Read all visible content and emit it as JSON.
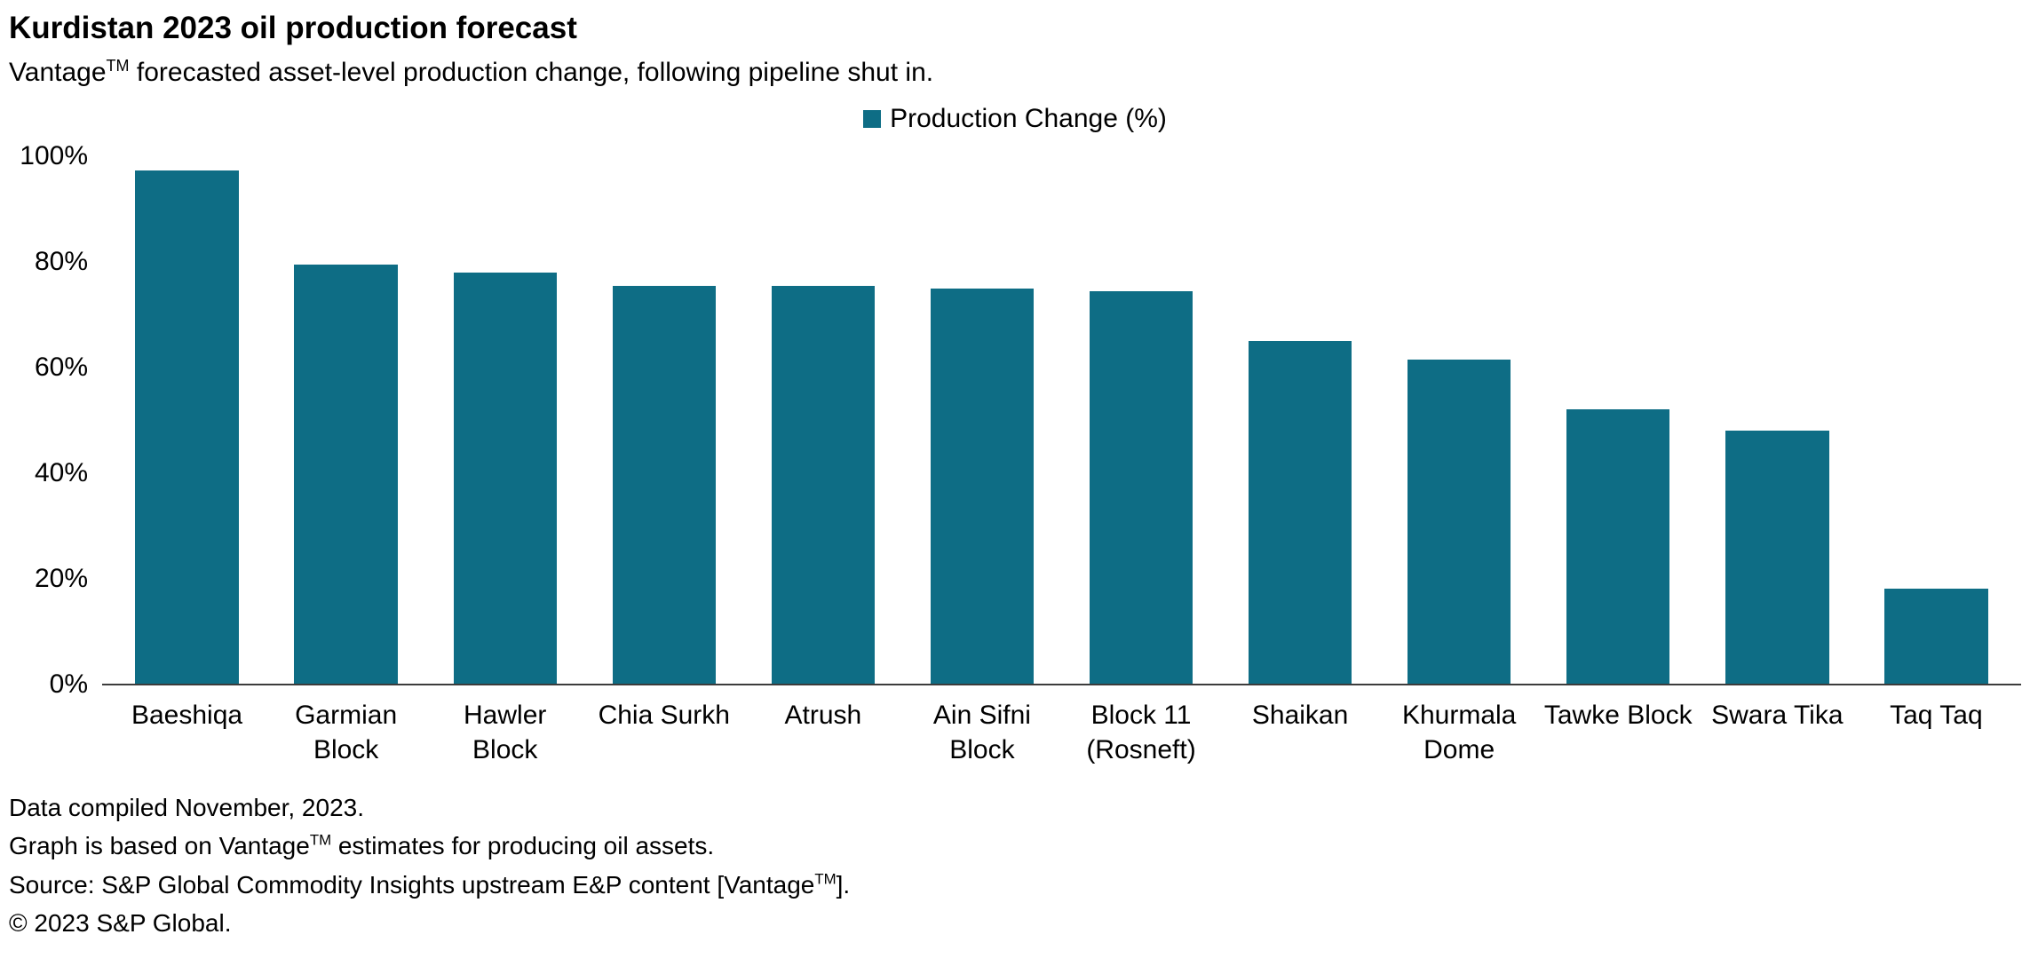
{
  "page": {
    "title": "Kurdistan 2023 oil production forecast",
    "subtitle": {
      "pre": "Vantage",
      "sup": "TM",
      "post": " forecasted asset-level production change, following pipeline shut in."
    }
  },
  "legend": {
    "label": "Production Change (%)"
  },
  "colors": {
    "bar": "#0e6d85",
    "axis": "#3c3c3c",
    "text": "#000000"
  },
  "chart_data": {
    "type": "bar",
    "title": "Kurdistan 2023 oil production forecast",
    "subtitle": "Vantage(TM) forecasted asset-level production change, following pipeline shut in.",
    "legend": [
      "Production Change (%)"
    ],
    "legend_position": "top",
    "grid": false,
    "xlabel": "",
    "ylabel": "",
    "ylim": [
      0,
      100
    ],
    "yticks": [
      "0%",
      "20%",
      "40%",
      "60%",
      "80%",
      "100%"
    ],
    "categories": [
      "Baeshiqa",
      "Garmian Block",
      "Hawler Block",
      "Chia Surkh",
      "Atrush",
      "Ain Sifni Block",
      "Block 11 (Rosneft)",
      "Shaikan",
      "Khurmala Dome",
      "Tawke Block",
      "Swara Tika",
      "Taq Taq"
    ],
    "values": [
      97.5,
      79.5,
      78,
      75.5,
      75.5,
      75,
      74.5,
      65,
      61.5,
      52,
      48,
      18
    ],
    "bar_color": "#0e6d85"
  },
  "footer": {
    "line1": "Data compiled November, 2023.",
    "line2": {
      "pre": "Graph is based on Vantage",
      "sup": "TM",
      "post": " estimates for producing oil assets."
    },
    "line3": {
      "pre": "Source: S&P Global Commodity Insights upstream E&P content [Vantage",
      "sup": "TM",
      "post": "]."
    },
    "line4": "© 2023 S&P Global."
  }
}
